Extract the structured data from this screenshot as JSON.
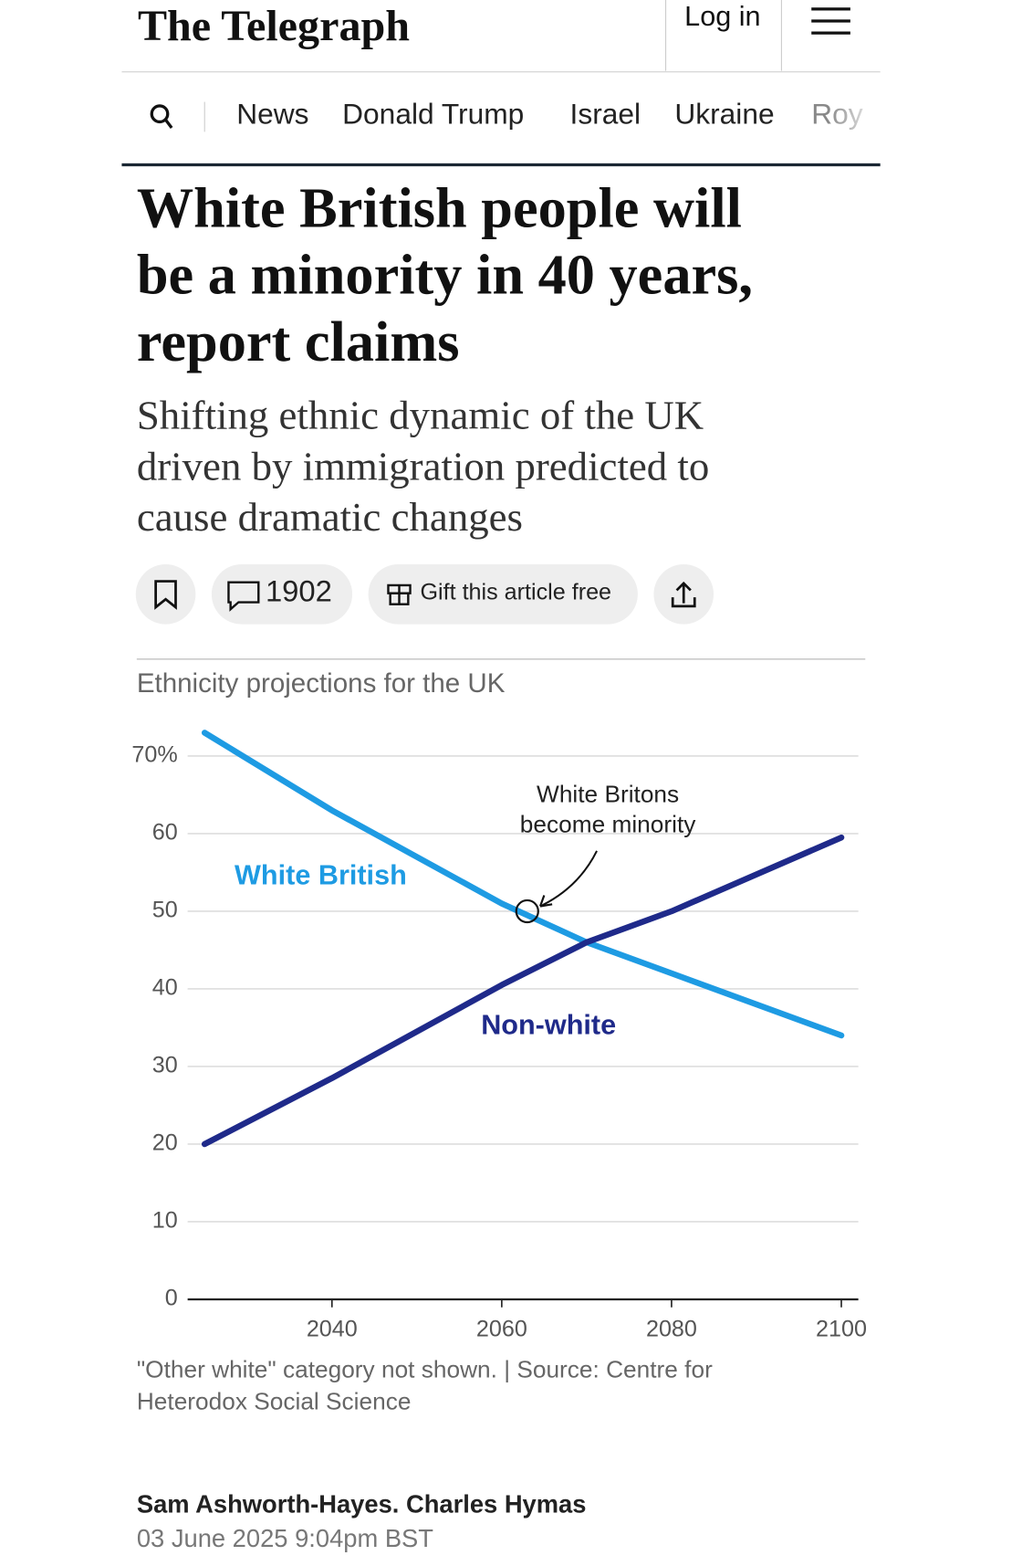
{
  "header": {
    "logo": "The Telegraph",
    "login": "Log in"
  },
  "nav": {
    "items": [
      "News",
      "Donald Trump",
      "Israel",
      "Ukraine",
      "Roy"
    ]
  },
  "article": {
    "headline_lines": [
      "White British people will",
      "be a minority in 40 years,",
      "report claims"
    ],
    "standfirst_lines": [
      "Shifting ethnic dynamic of the UK",
      "driven by immigration predicted to",
      "cause dramatic changes"
    ],
    "comments": "1902",
    "gift": "Gift this article free",
    "byline": "Sam Ashworth-Hayes. Charles Hymas",
    "date": "03 June 2025 9:04pm BST"
  },
  "chart_data": {
    "type": "line",
    "title": "Ethnicity projections for the UK",
    "x": [
      2025,
      2040,
      2060,
      2070,
      2080,
      2100
    ],
    "series": [
      {
        "name": "White British",
        "color": "#1e9be3",
        "values": [
          73,
          63,
          51,
          46,
          42,
          34
        ]
      },
      {
        "name": "Non-white",
        "color": "#1f2a8a",
        "values": [
          20,
          28.5,
          40.5,
          46,
          50,
          59.5
        ]
      }
    ],
    "xlim": [
      2023,
      2102
    ],
    "xticks": [
      2040,
      2060,
      2080,
      2100
    ],
    "ylim": [
      0,
      70
    ],
    "yticks": [
      0,
      10,
      20,
      30,
      40,
      50,
      60,
      {
        "value": 70,
        "label": "70%"
      }
    ],
    "grid": true,
    "annotation": {
      "lines": [
        "White Britons",
        "become minority"
      ],
      "x": 2063,
      "y": 50
    },
    "footnote_lines": [
      "\"Other white\" category not shown. | Source: Centre for",
      "Heterodox Social Science"
    ]
  }
}
